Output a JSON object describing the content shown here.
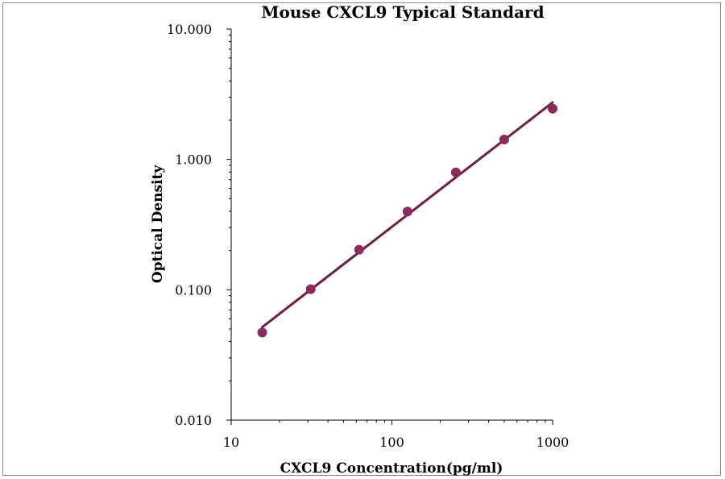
{
  "chart_data": {
    "type": "scatter",
    "title": "Mouse CXCL9 Typical Standard",
    "xlabel": "CXCL9 Concentration(pg/ml)",
    "ylabel": "Optical Density",
    "x_scale": "log",
    "y_scale": "log",
    "xlim": [
      10,
      1000
    ],
    "ylim": [
      0.01,
      10
    ],
    "x_ticks": [
      "10",
      "100",
      "1000"
    ],
    "y_ticks": [
      "10.000",
      "1.000",
      "0.100",
      "0.010"
    ],
    "grid": false,
    "legend": "none",
    "series": [
      {
        "x": [
          15.6,
          31.25,
          62.5,
          125,
          250,
          500,
          1000
        ],
        "y": [
          0.047,
          0.101,
          0.203,
          0.398,
          0.795,
          1.42,
          2.45
        ],
        "marker": "circle",
        "trendline": "power",
        "color": "#8b2b5c",
        "line_color": "#6b1f47"
      }
    ]
  }
}
